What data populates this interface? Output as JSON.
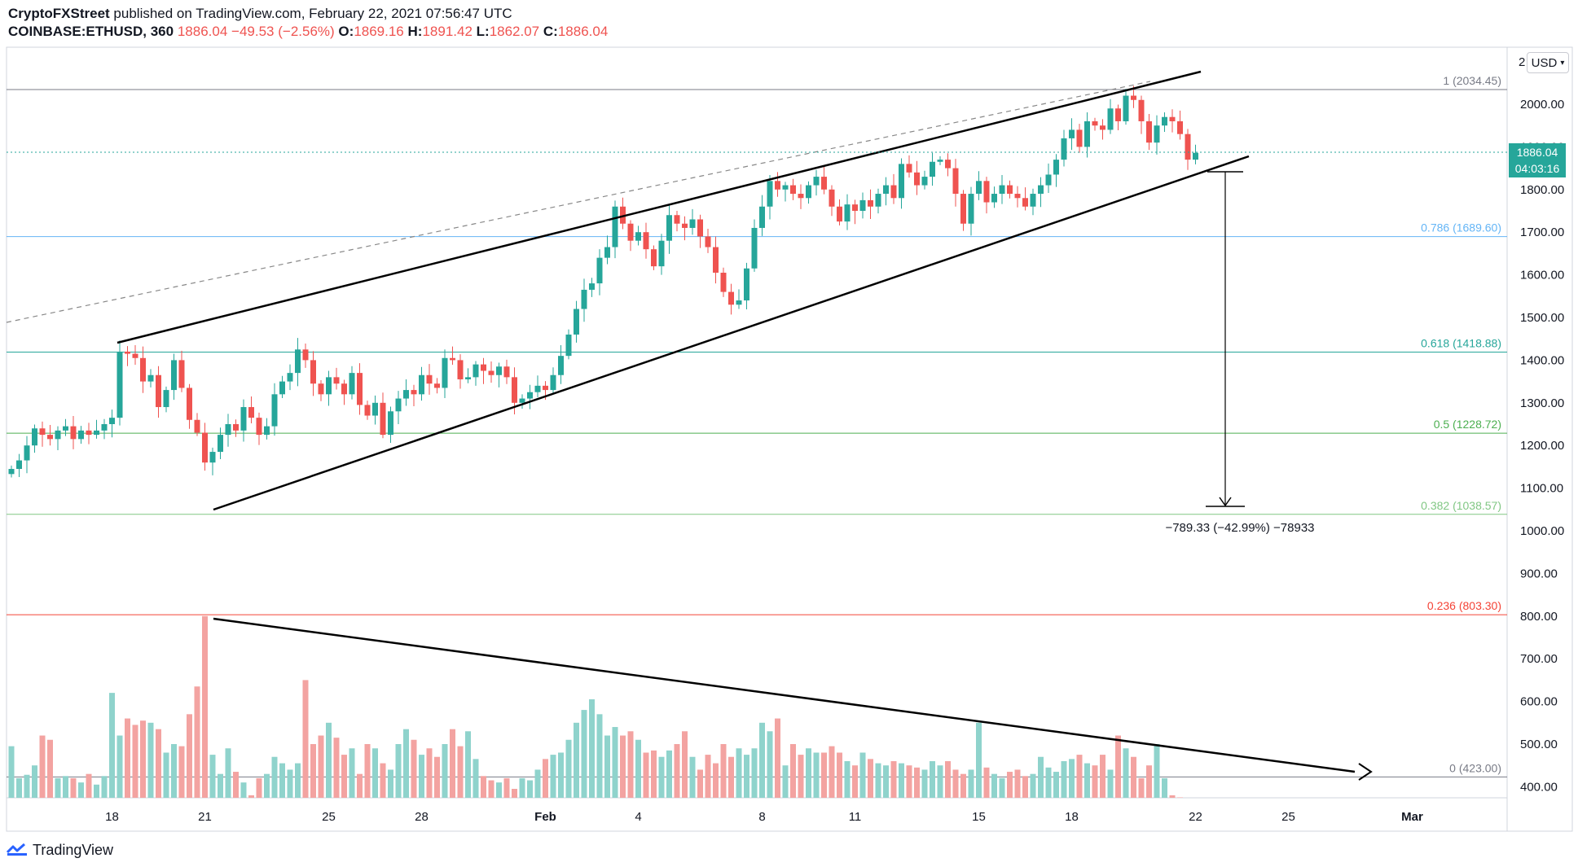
{
  "header": {
    "publisher": "CryptoFXStreet",
    "published_text": "published on TradingView.com, February 22, 2021 07:56:47 UTC",
    "symbol": "COINBASE:ETHUSD, 360",
    "last": "1886.04",
    "change": "−49.53 (−2.56%)",
    "o_label": "O:",
    "o_value": "1869.16",
    "h_label": "H:",
    "h_value": "1891.42",
    "l_label": "L:",
    "l_value": "1862.07",
    "c_label": "C:",
    "c_value": "1886.04"
  },
  "currency_button": "USD",
  "axis_top_partial": "2",
  "price_tag": {
    "value": "1886.04",
    "countdown": "04:03:16"
  },
  "measure_label": "−789.33 (−42.99%) −78933",
  "footer": {
    "brand": "TradingView"
  },
  "colors": {
    "up": "#26a69a",
    "down": "#ef5350",
    "vol_up": "#8fd3cc",
    "vol_down": "#f3a3a1",
    "fib_1": "#787b86",
    "fib_786": "#64b5f6",
    "fib_618": "#26a69a",
    "fib_5": "#4caf50",
    "fib_382": "#81c784",
    "fib_236": "#f44336",
    "fib_0": "#787b86"
  },
  "chart_data": {
    "type": "candlestick",
    "symbol": "COINBASE:ETHUSD",
    "interval": "360",
    "y_axis": {
      "ticks": [
        "2000.00",
        "1900.00",
        "1800.00",
        "1700.00",
        "1600.00",
        "1500.00",
        "1400.00",
        "1300.00",
        "1200.00",
        "1100.00",
        "1000.00",
        "900.00",
        "800.00",
        "700.00",
        "600.00",
        "500.00",
        "400.00"
      ],
      "range": [
        350,
        2090
      ]
    },
    "x_axis": {
      "ticks": [
        {
          "label": "18",
          "bar": 13,
          "bold": false
        },
        {
          "label": "21",
          "bar": 25,
          "bold": false
        },
        {
          "label": "25",
          "bar": 41,
          "bold": false
        },
        {
          "label": "28",
          "bar": 53,
          "bold": false
        },
        {
          "label": "Feb",
          "bar": 69,
          "bold": true
        },
        {
          "label": "4",
          "bar": 81,
          "bold": false
        },
        {
          "label": "8",
          "bar": 97,
          "bold": false
        },
        {
          "label": "11",
          "bar": 109,
          "bold": false
        },
        {
          "label": "15",
          "bar": 125,
          "bold": false
        },
        {
          "label": "18",
          "bar": 137,
          "bold": false
        },
        {
          "label": "22",
          "bar": 153,
          "bold": false
        },
        {
          "label": "25",
          "bar": 165,
          "bold": false
        },
        {
          "label": "Mar",
          "bar": 181,
          "bold": true
        }
      ]
    },
    "fib_levels": [
      {
        "ratio": "1",
        "value": 2034.45,
        "label": "1 (2034.45)"
      },
      {
        "ratio": "0.786",
        "value": 1689.6,
        "label": "0.786 (1689.60)"
      },
      {
        "ratio": "0.618",
        "value": 1418.88,
        "label": "0.618 (1418.88)"
      },
      {
        "ratio": "0.5",
        "value": 1228.72,
        "label": "0.5 (1228.72)"
      },
      {
        "ratio": "0.382",
        "value": 1038.57,
        "label": "0.382 (1038.57)"
      },
      {
        "ratio": "0.236",
        "value": 803.3,
        "label": "0.236 (803.30)"
      },
      {
        "ratio": "0",
        "value": 423.0,
        "label": "0 (423.00)"
      }
    ],
    "last_price": 1886.04,
    "closes": [
      1145,
      1165,
      1200,
      1240,
      1225,
      1215,
      1235,
      1245,
      1215,
      1235,
      1225,
      1235,
      1250,
      1265,
      1420,
      1415,
      1405,
      1350,
      1365,
      1290,
      1330,
      1400,
      1335,
      1260,
      1230,
      1160,
      1185,
      1225,
      1250,
      1235,
      1290,
      1265,
      1225,
      1245,
      1320,
      1350,
      1370,
      1425,
      1400,
      1345,
      1320,
      1360,
      1345,
      1320,
      1370,
      1295,
      1270,
      1300,
      1225,
      1280,
      1310,
      1330,
      1320,
      1365,
      1345,
      1335,
      1405,
      1400,
      1355,
      1360,
      1390,
      1375,
      1365,
      1385,
      1360,
      1300,
      1310,
      1325,
      1340,
      1330,
      1365,
      1410,
      1460,
      1520,
      1565,
      1580,
      1640,
      1665,
      1760,
      1720,
      1680,
      1700,
      1660,
      1620,
      1680,
      1740,
      1720,
      1710,
      1730,
      1690,
      1665,
      1605,
      1560,
      1530,
      1540,
      1615,
      1710,
      1760,
      1820,
      1800,
      1810,
      1790,
      1780,
      1810,
      1830,
      1800,
      1760,
      1725,
      1765,
      1750,
      1775,
      1760,
      1790,
      1810,
      1780,
      1860,
      1840,
      1810,
      1830,
      1865,
      1870,
      1850,
      1790,
      1720,
      1790,
      1820,
      1770,
      1790,
      1810,
      1790,
      1780,
      1760,
      1790,
      1810,
      1835,
      1870,
      1920,
      1940,
      1900,
      1960,
      1950,
      1940,
      1990,
      1960,
      2020,
      2010,
      1960,
      1910,
      1950,
      1970,
      1960,
      1930,
      1870,
      1886
    ],
    "volumes": [
      495,
      420,
      428,
      450,
      520,
      510,
      420,
      425,
      420,
      410,
      430,
      405,
      425,
      620,
      520,
      560,
      545,
      555,
      550,
      535,
      480,
      500,
      495,
      570,
      635,
      800,
      475,
      430,
      490,
      435,
      410,
      380,
      420,
      430,
      470,
      455,
      440,
      455,
      650,
      500,
      520,
      550,
      515,
      475,
      490,
      430,
      500,
      490,
      455,
      440,
      500,
      535,
      510,
      475,
      490,
      470,
      500,
      535,
      495,
      530,
      465,
      425,
      415,
      410,
      420,
      395,
      420,
      415,
      440,
      465,
      475,
      480,
      510,
      550,
      580,
      605,
      570,
      520,
      540,
      520,
      530,
      510,
      480,
      485,
      470,
      485,
      500,
      530,
      470,
      440,
      475,
      455,
      500,
      470,
      490,
      475,
      490,
      550,
      530,
      560,
      450,
      500,
      475,
      490,
      480,
      480,
      495,
      480,
      460,
      450,
      480,
      465,
      455,
      450,
      460,
      455,
      450,
      445,
      440,
      460,
      450,
      460,
      440,
      430,
      440,
      550,
      445,
      430,
      420,
      435,
      440,
      425,
      430,
      470,
      445,
      435,
      460,
      465,
      475,
      455,
      450,
      475,
      440,
      520,
      490,
      470,
      420,
      450,
      500,
      420,
      380,
      375,
      365,
      355
    ]
  }
}
